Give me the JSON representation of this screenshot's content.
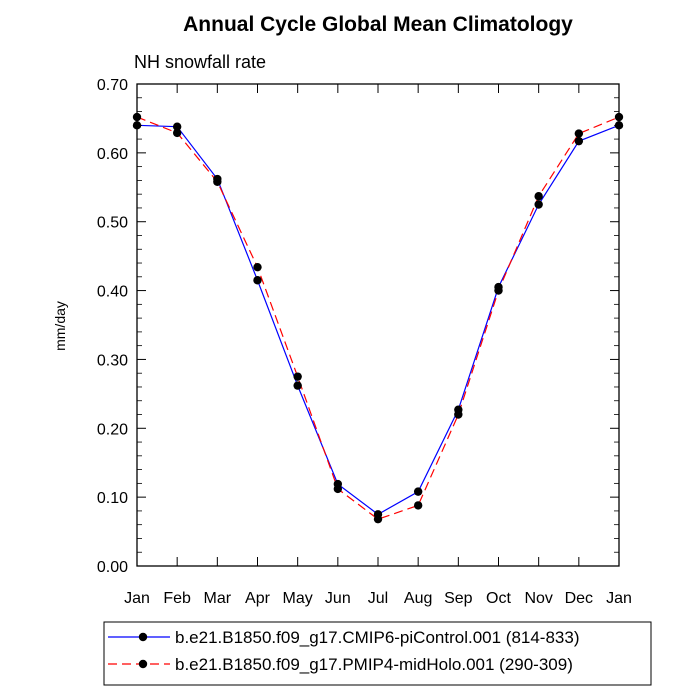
{
  "chart_data": {
    "type": "line",
    "title": "Annual Cycle Global Mean Climatology",
    "subtitle": "NH snowfall rate",
    "xlabel": "",
    "ylabel": "mm/day",
    "categories": [
      "Jan",
      "Feb",
      "Mar",
      "Apr",
      "May",
      "Jun",
      "Jul",
      "Aug",
      "Sep",
      "Oct",
      "Nov",
      "Dec",
      "Jan"
    ],
    "ylim": [
      0,
      0.7
    ],
    "yticks": [
      "0.00",
      "0.10",
      "0.20",
      "0.30",
      "0.40",
      "0.50",
      "0.60",
      "0.70"
    ],
    "legend_position": "bottom",
    "series": [
      {
        "name": "b.e21.B1850.f09_g17.CMIP6-piControl.001 (814-833)",
        "color": "#0000ff",
        "dash": "solid",
        "values": [
          0.64,
          0.638,
          0.562,
          0.415,
          0.262,
          0.119,
          0.075,
          0.108,
          0.227,
          0.405,
          0.525,
          0.617,
          0.64
        ]
      },
      {
        "name": "b.e21.B1850.f09_g17.PMIP4-midHolo.001 (290-309)",
        "color": "#ff0000",
        "dash": "dashed",
        "values": [
          0.652,
          0.629,
          0.558,
          0.434,
          0.275,
          0.112,
          0.068,
          0.088,
          0.22,
          0.4,
          0.537,
          0.628,
          0.652
        ]
      }
    ]
  }
}
